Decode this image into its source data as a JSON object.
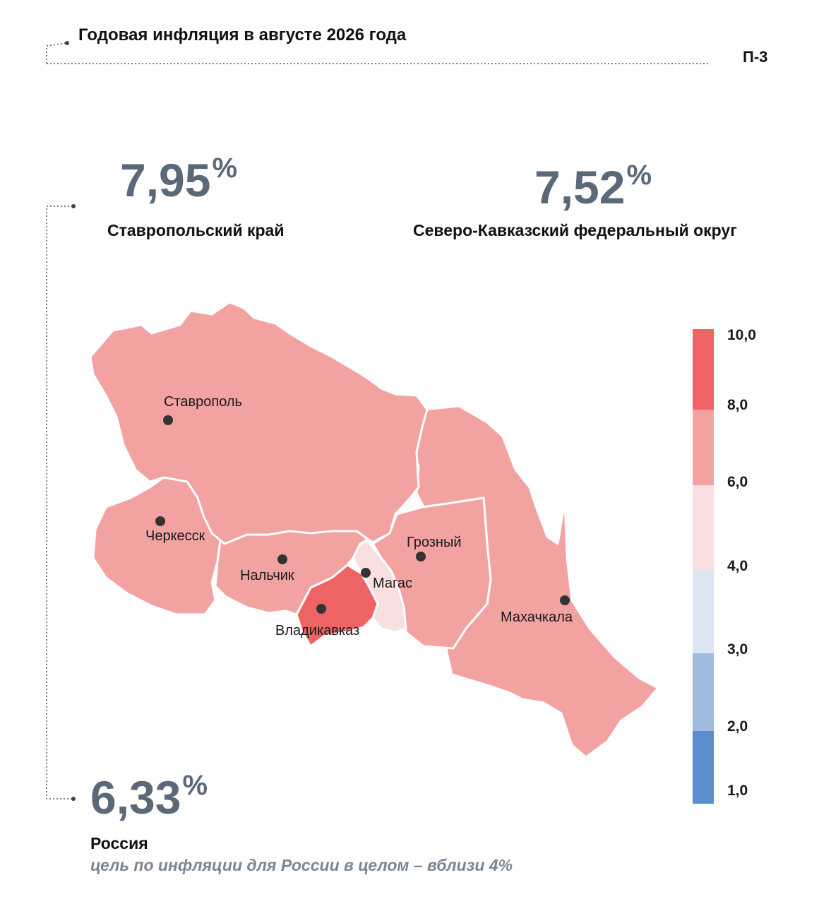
{
  "header": {
    "title": "Годовая инфляция в августе 2026 года",
    "code": "П-3"
  },
  "stats": {
    "stavropol": {
      "value": "7,95",
      "pct": "%",
      "label": "Ставропольский край"
    },
    "skfo": {
      "value": "7,52",
      "pct": "%",
      "label": "Северо-Кавказский федеральный округ"
    },
    "russia": {
      "value": "6,33",
      "pct": "%",
      "label": "Россия"
    }
  },
  "target_note": "цель по инфляции для России в целом – вблизи 4%",
  "cities": {
    "stavropol": "Ставрополь",
    "cherkessk": "Черкесск",
    "nalchik": "Нальчик",
    "magas": "Магас",
    "vladikavkaz": "Владикавказ",
    "grozny": "Грозный",
    "makhachkala": "Махачкала"
  },
  "legend": {
    "ticks": [
      "10,0",
      "8,0",
      "6,0",
      "4,0",
      "3,0",
      "2,0",
      "1,0"
    ],
    "colors": {
      "8-10": "#ee6464",
      "6-8": "#f3a2a2",
      "4-6": "#f9dfe0",
      "3-4": "#dce5f2",
      "2-3": "#9fbbe0",
      "1-2": "#5b8ccb"
    }
  },
  "region_colors": {
    "stavropol": "#f3a2a2",
    "kchr": "#f3a2a2",
    "kbr": "#f3a2a2",
    "north_ossetia": "#ee6464",
    "ingushetia": "#f9dfe0",
    "chechnya": "#f3a2a2",
    "dagestan": "#f3a2a2"
  }
}
